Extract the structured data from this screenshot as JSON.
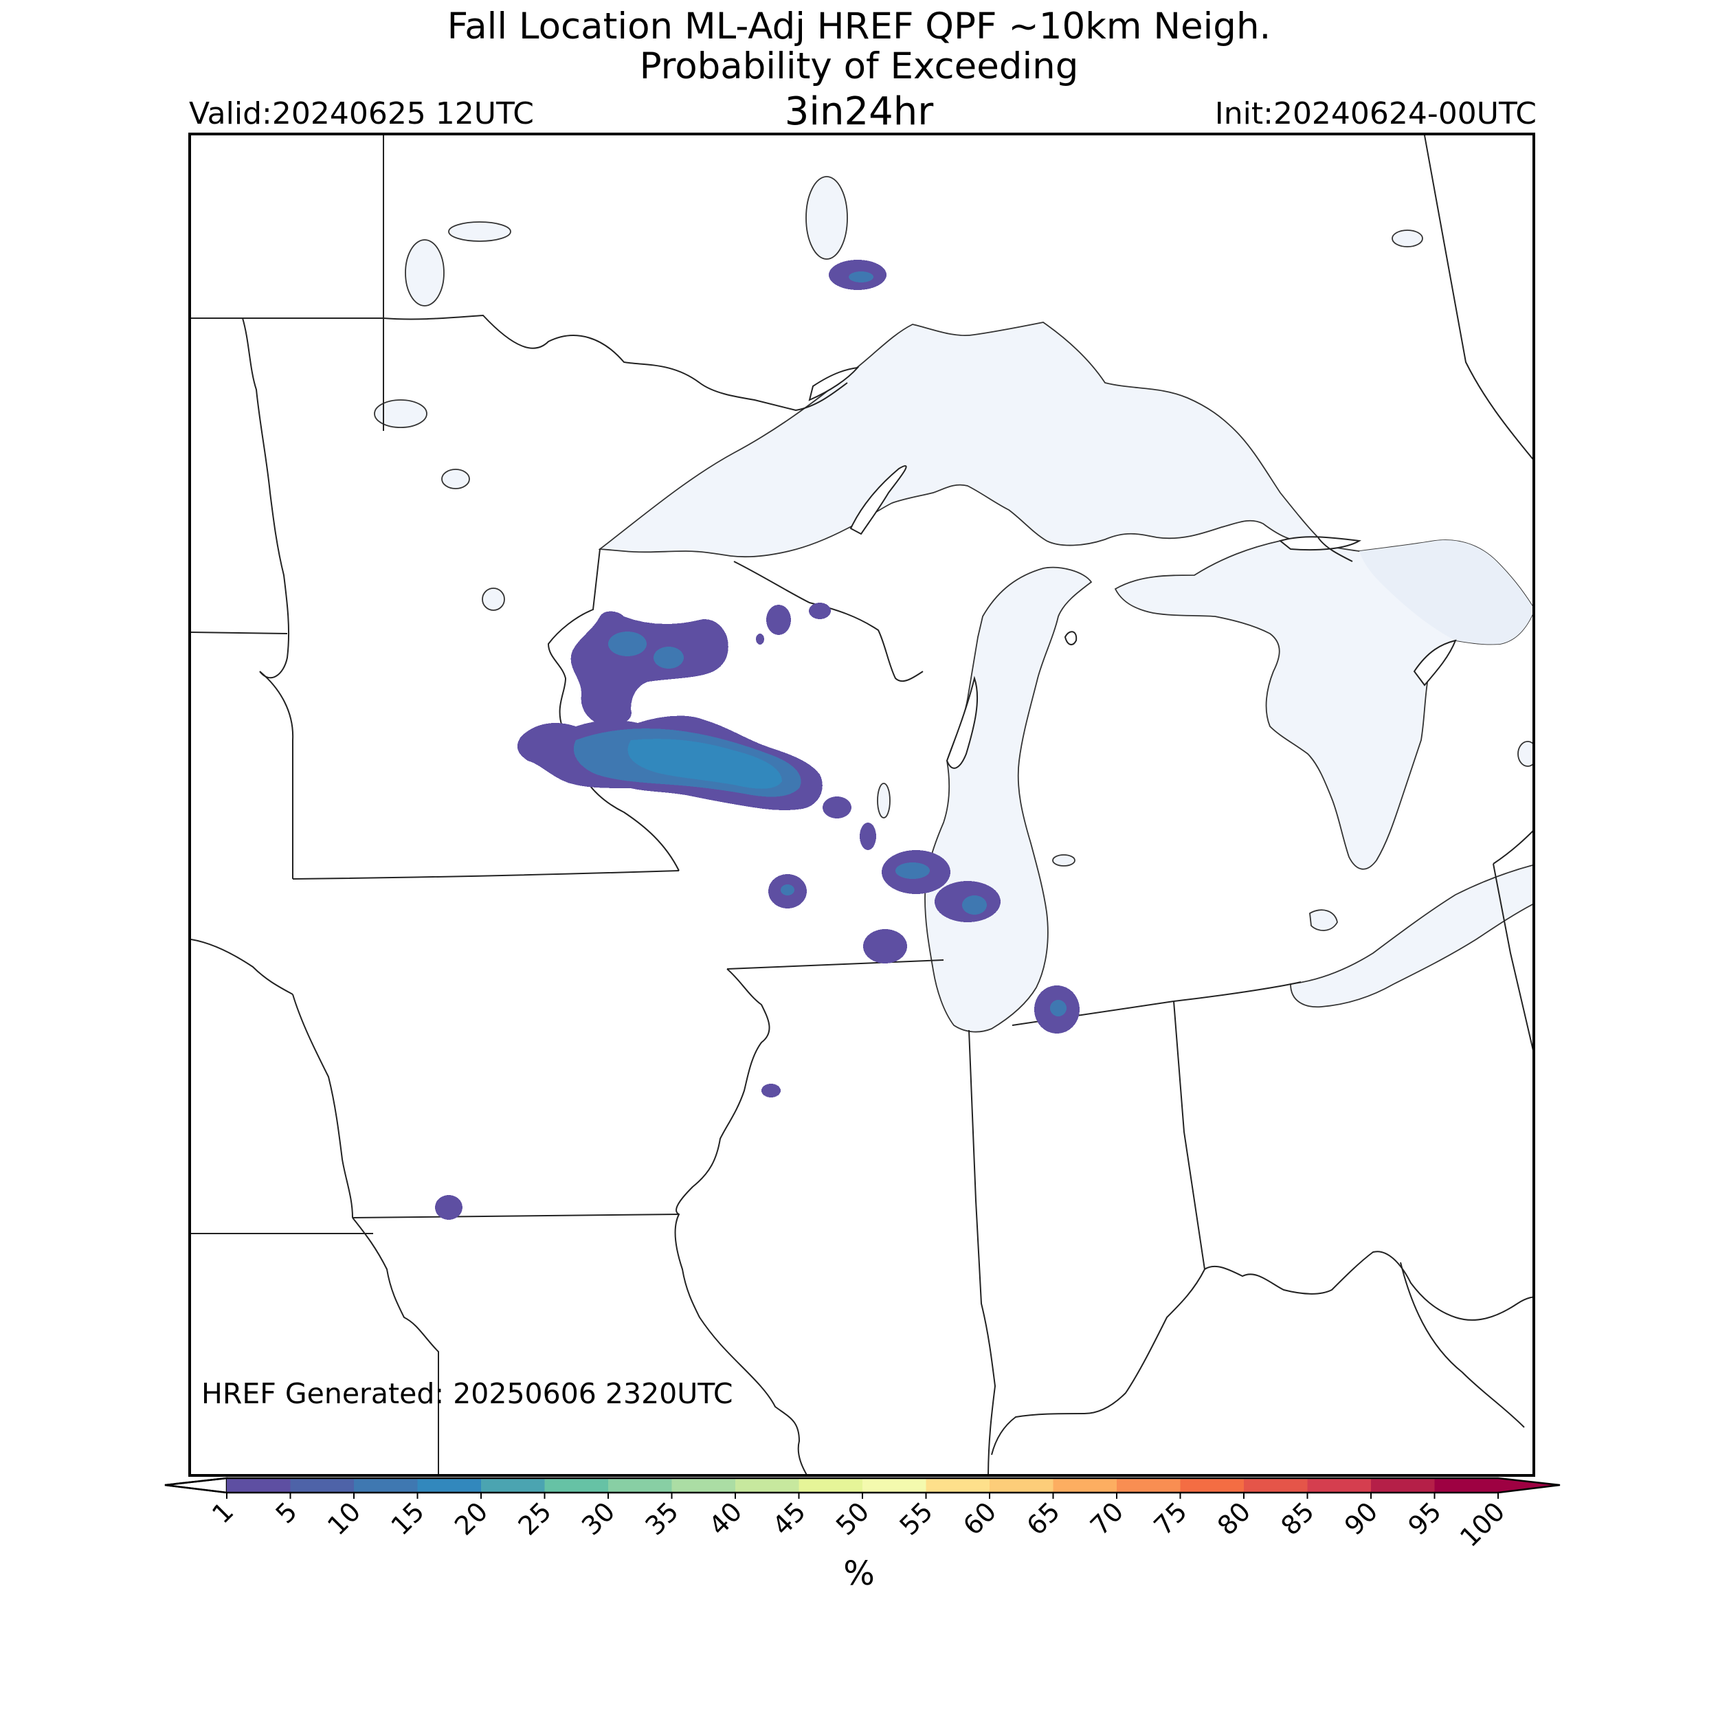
{
  "title": {
    "line1": "Fall Location ML-Adj HREF QPF ~10km Neigh.",
    "line2": "Probability of Exceeding",
    "line3": "3in24hr"
  },
  "valid_label": "Valid:20240625 12UTC",
  "init_label": "Init:20240624-00UTC",
  "generated_label": "HREF Generated: 20250606 2320UTC",
  "colorbar": {
    "unit": "%",
    "ticks": [
      "1",
      "5",
      "10",
      "15",
      "20",
      "25",
      "30",
      "35",
      "40",
      "45",
      "50",
      "55",
      "60",
      "65",
      "70",
      "75",
      "80",
      "85",
      "90",
      "95",
      "100"
    ],
    "colors": [
      "#5e4fa2",
      "#4e63a8",
      "#3f78b1",
      "#3288bd",
      "#4ba4b1",
      "#66c2a5",
      "#88cfa4",
      "#abdda4",
      "#c7e89e",
      "#e6f598",
      "#f4faae",
      "#fee08b",
      "#fdcd79",
      "#fdae61",
      "#f98e52",
      "#f46d43",
      "#e55549",
      "#d53e4f",
      "#b51f48",
      "#9e0142"
    ],
    "under_color": "#ffffff",
    "over_color": "#9e0142"
  },
  "map_colors": {
    "water": "#f1f5fb",
    "prob_low": "#5e4fa2",
    "prob_mid": "#3f78b1",
    "prob_high": "#3288bd"
  }
}
